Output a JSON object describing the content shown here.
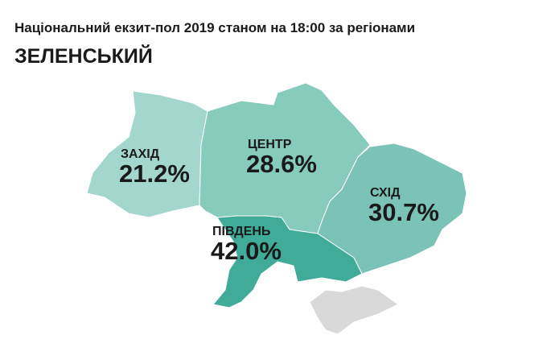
{
  "chart_data": {
    "type": "map",
    "title": "Національний екзит-пол 2019 станом на 18:00 за регіонами",
    "subtitle": "ЗЕЛЕНСЬКИЙ",
    "categories": [
      "ЗАХІД",
      "ЦЕНТР",
      "СХІД",
      "ПІВДЕНЬ"
    ],
    "values": [
      21.2,
      28.6,
      30.7,
      42.0
    ],
    "value_labels": [
      "21.2%",
      "28.6%",
      "30.7%",
      "42.0%"
    ],
    "colors": [
      "#a3d7cd",
      "#87cbbd",
      "#7cc3b7",
      "#3fab98"
    ]
  }
}
